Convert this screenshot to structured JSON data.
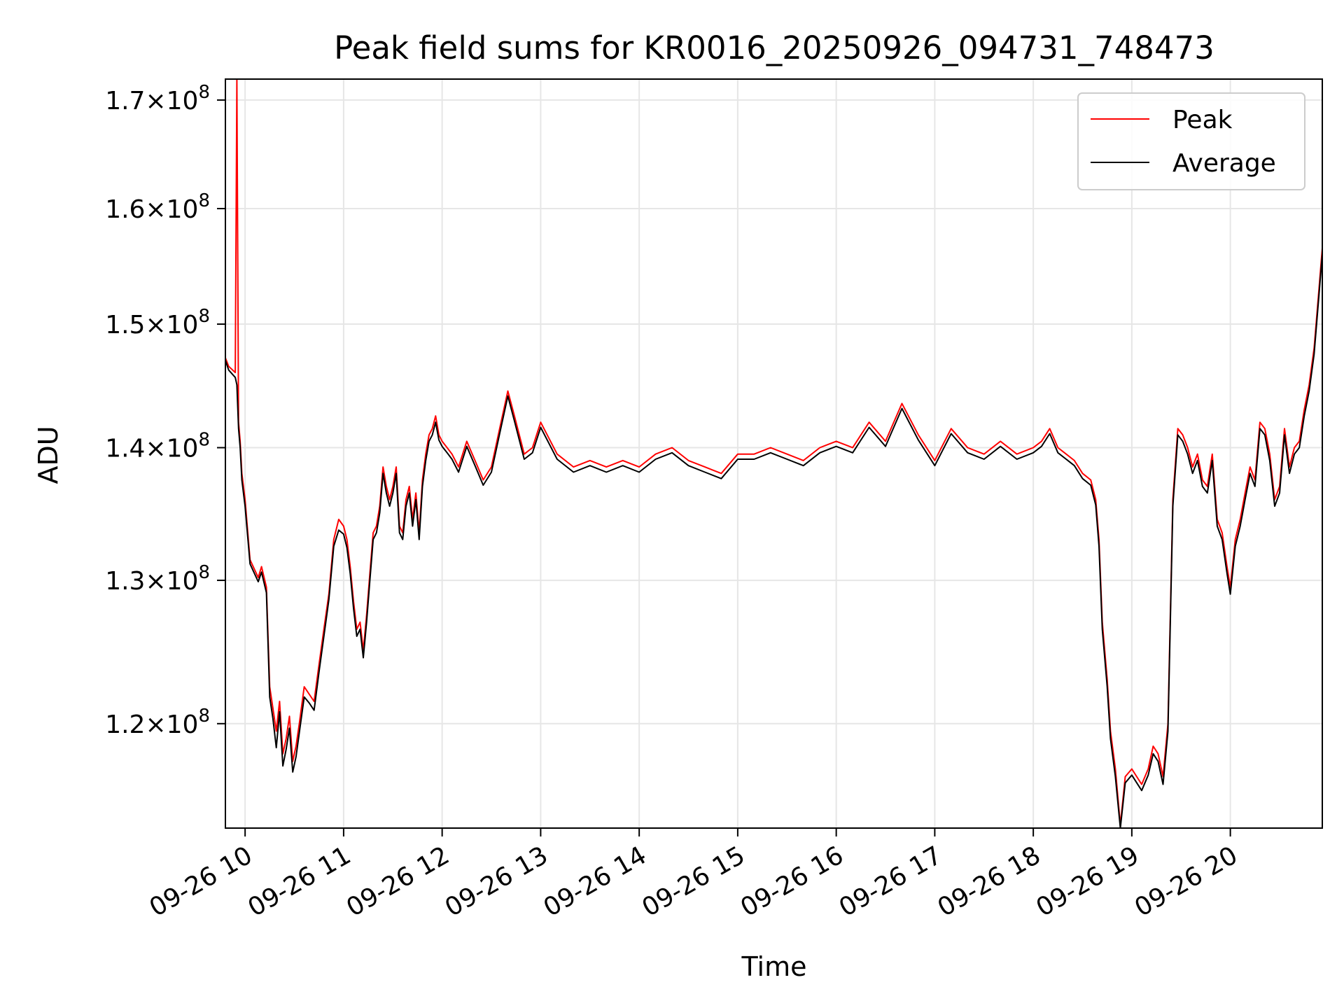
{
  "chart_data": {
    "type": "line",
    "title": "Peak field sums for KR0016_20250926_094731_748473",
    "xlabel": "Time",
    "ylabel": "ADU",
    "y_scale": "log",
    "grid": true,
    "legend": "upper right",
    "ylim": [
      113200000,
      172000000
    ],
    "xlim": [
      "2025-09-26 09:48",
      "2025-09-26 20:56"
    ],
    "x_ticks": [
      "2025-09-26 10:00",
      "2025-09-26 11:00",
      "2025-09-26 12:00",
      "2025-09-26 13:00",
      "2025-09-26 14:00",
      "2025-09-26 15:00",
      "2025-09-26 16:00",
      "2025-09-26 17:00",
      "2025-09-26 18:00",
      "2025-09-26 19:00",
      "2025-09-26 20:00"
    ],
    "x_tick_labels": [
      "09-26 10",
      "09-26 11",
      "09-26 12",
      "09-26 13",
      "09-26 14",
      "09-26 15",
      "09-26 16",
      "09-26 17",
      "09-26 18",
      "09-26 19",
      "09-26 20"
    ],
    "y_ticks": [
      {
        "value": 120000000,
        "mantissa": "1.2",
        "exp": "8"
      },
      {
        "value": 130000000,
        "mantissa": "1.3",
        "exp": "8"
      },
      {
        "value": 140000000,
        "mantissa": "1.4",
        "exp": "8"
      },
      {
        "value": 150000000,
        "mantissa": "1.5",
        "exp": "8"
      },
      {
        "value": 160000000,
        "mantissa": "1.6",
        "exp": "8"
      },
      {
        "value": 170000000,
        "mantissa": "1.7",
        "exp": "8"
      }
    ],
    "series": [
      {
        "name": "Peak",
        "color": "#ff0000",
        "x": [
          "2025-09-26 09:48",
          "2025-09-26 09:50",
          "2025-09-26 09:54",
          "2025-09-26 09:55",
          "2025-09-26 09:56",
          "2025-09-26 09:57",
          "2025-09-26 09:58",
          "2025-09-26 10:00",
          "2025-09-26 10:03",
          "2025-09-26 10:08",
          "2025-09-26 10:10",
          "2025-09-26 10:13",
          "2025-09-26 10:15",
          "2025-09-26 10:17",
          "2025-09-26 10:19",
          "2025-09-26 10:21",
          "2025-09-26 10:23",
          "2025-09-26 10:25",
          "2025-09-26 10:27",
          "2025-09-26 10:29",
          "2025-09-26 10:31",
          "2025-09-26 10:33",
          "2025-09-26 10:36",
          "2025-09-26 10:39",
          "2025-09-26 10:42",
          "2025-09-26 10:45",
          "2025-09-26 10:48",
          "2025-09-26 10:51",
          "2025-09-26 10:54",
          "2025-09-26 10:57",
          "2025-09-26 11:00",
          "2025-09-26 11:02",
          "2025-09-26 11:04",
          "2025-09-26 11:06",
          "2025-09-26 11:08",
          "2025-09-26 11:10",
          "2025-09-26 11:12",
          "2025-09-26 11:14",
          "2025-09-26 11:16",
          "2025-09-26 11:18",
          "2025-09-26 11:20",
          "2025-09-26 11:22",
          "2025-09-26 11:24",
          "2025-09-26 11:26",
          "2025-09-26 11:28",
          "2025-09-26 11:30",
          "2025-09-26 11:32",
          "2025-09-26 11:34",
          "2025-09-26 11:36",
          "2025-09-26 11:38",
          "2025-09-26 11:40",
          "2025-09-26 11:42",
          "2025-09-26 11:44",
          "2025-09-26 11:46",
          "2025-09-26 11:48",
          "2025-09-26 11:50",
          "2025-09-26 11:52",
          "2025-09-26 11:54",
          "2025-09-26 11:56",
          "2025-09-26 11:58",
          "2025-09-26 12:00",
          "2025-09-26 12:03",
          "2025-09-26 12:06",
          "2025-09-26 12:10",
          "2025-09-26 12:15",
          "2025-09-26 12:20",
          "2025-09-26 12:25",
          "2025-09-26 12:30",
          "2025-09-26 12:35",
          "2025-09-26 12:40",
          "2025-09-26 12:44",
          "2025-09-26 12:50",
          "2025-09-26 12:55",
          "2025-09-26 13:00",
          "2025-09-26 13:10",
          "2025-09-26 13:20",
          "2025-09-26 13:30",
          "2025-09-26 13:40",
          "2025-09-26 13:50",
          "2025-09-26 14:00",
          "2025-09-26 14:10",
          "2025-09-26 14:20",
          "2025-09-26 14:30",
          "2025-09-26 14:40",
          "2025-09-26 14:50",
          "2025-09-26 15:00",
          "2025-09-26 15:10",
          "2025-09-26 15:20",
          "2025-09-26 15:30",
          "2025-09-26 15:40",
          "2025-09-26 15:50",
          "2025-09-26 16:00",
          "2025-09-26 16:10",
          "2025-09-26 16:20",
          "2025-09-26 16:30",
          "2025-09-26 16:40",
          "2025-09-26 16:50",
          "2025-09-26 17:00",
          "2025-09-26 17:10",
          "2025-09-26 17:20",
          "2025-09-26 17:30",
          "2025-09-26 17:40",
          "2025-09-26 17:50",
          "2025-09-26 18:00",
          "2025-09-26 18:05",
          "2025-09-26 18:10",
          "2025-09-26 18:15",
          "2025-09-26 18:20",
          "2025-09-26 18:25",
          "2025-09-26 18:30",
          "2025-09-26 18:35",
          "2025-09-26 18:38",
          "2025-09-26 18:40",
          "2025-09-26 18:42",
          "2025-09-26 18:45",
          "2025-09-26 18:47",
          "2025-09-26 18:50",
          "2025-09-26 18:53",
          "2025-09-26 18:56",
          "2025-09-26 19:00",
          "2025-09-26 19:03",
          "2025-09-26 19:06",
          "2025-09-26 19:10",
          "2025-09-26 19:13",
          "2025-09-26 19:16",
          "2025-09-26 19:19",
          "2025-09-26 19:22",
          "2025-09-26 19:25",
          "2025-09-26 19:28",
          "2025-09-26 19:31",
          "2025-09-26 19:34",
          "2025-09-26 19:37",
          "2025-09-26 19:40",
          "2025-09-26 19:43",
          "2025-09-26 19:46",
          "2025-09-26 19:49",
          "2025-09-26 19:52",
          "2025-09-26 19:55",
          "2025-09-26 19:58",
          "2025-09-26 20:00",
          "2025-09-26 20:03",
          "2025-09-26 20:06",
          "2025-09-26 20:09",
          "2025-09-26 20:12",
          "2025-09-26 20:15",
          "2025-09-26 20:18",
          "2025-09-26 20:21",
          "2025-09-26 20:24",
          "2025-09-26 20:27",
          "2025-09-26 20:30",
          "2025-09-26 20:33",
          "2025-09-26 20:36",
          "2025-09-26 20:39",
          "2025-09-26 20:42",
          "2025-09-26 20:45",
          "2025-09-26 20:48",
          "2025-09-26 20:51",
          "2025-09-26 20:54",
          "2025-09-26 20:56"
        ],
        "values": [
          147200000,
          146500000,
          146000000,
          172000000,
          142000000,
          140500000,
          138000000,
          136000000,
          131500000,
          130200000,
          131000000,
          129500000,
          122500000,
          121000000,
          119500000,
          121500000,
          118000000,
          119000000,
          120500000,
          117500000,
          118500000,
          120000000,
          122500000,
          122000000,
          121500000,
          124000000,
          126500000,
          129000000,
          133000000,
          134500000,
          134000000,
          133000000,
          131000000,
          128500000,
          126500000,
          127000000,
          125000000,
          127500000,
          130500000,
          133500000,
          134000000,
          135500000,
          138500000,
          137000000,
          136000000,
          137000000,
          138500000,
          134000000,
          133500000,
          136000000,
          137000000,
          134500000,
          136500000,
          133500000,
          137500000,
          139500000,
          141000000,
          141500000,
          142500000,
          141000000,
          140500000,
          140000000,
          139500000,
          138500000,
          140500000,
          139000000,
          137500000,
          138500000,
          141500000,
          144500000,
          142500000,
          139500000,
          140000000,
          142000000,
          139500000,
          138500000,
          139000000,
          138500000,
          139000000,
          138500000,
          139500000,
          140000000,
          139000000,
          138500000,
          138000000,
          139500000,
          139500000,
          140000000,
          139500000,
          139000000,
          140000000,
          140500000,
          140000000,
          142000000,
          140500000,
          143500000,
          141000000,
          139000000,
          141500000,
          140000000,
          139500000,
          140500000,
          139500000,
          140000000,
          140500000,
          141500000,
          140000000,
          139500000,
          139000000,
          138000000,
          137500000,
          136000000,
          133000000,
          127000000,
          123000000,
          119500000,
          117000000,
          113400000,
          116500000,
          117000000,
          116500000,
          116000000,
          117000000,
          118500000,
          118000000,
          116500000,
          120000000,
          136000000,
          141500000,
          141000000,
          140000000,
          138500000,
          139500000,
          137500000,
          137000000,
          139500000,
          134500000,
          133500000,
          131000000,
          129500000,
          133000000,
          134500000,
          136500000,
          138500000,
          137500000,
          142000000,
          141500000,
          139500000,
          136000000,
          137000000,
          141500000,
          138500000,
          140000000,
          140500000,
          143000000,
          145000000,
          148000000,
          153000000,
          156500000
        ]
      },
      {
        "name": "Average",
        "color": "#000000",
        "x": [
          "2025-09-26 09:48",
          "2025-09-26 09:50",
          "2025-09-26 09:54",
          "2025-09-26 09:55",
          "2025-09-26 09:56",
          "2025-09-26 09:57",
          "2025-09-26 09:58",
          "2025-09-26 10:00",
          "2025-09-26 10:03",
          "2025-09-26 10:08",
          "2025-09-26 10:10",
          "2025-09-26 10:13",
          "2025-09-26 10:15",
          "2025-09-26 10:17",
          "2025-09-26 10:19",
          "2025-09-26 10:21",
          "2025-09-26 10:23",
          "2025-09-26 10:25",
          "2025-09-26 10:27",
          "2025-09-26 10:29",
          "2025-09-26 10:31",
          "2025-09-26 10:33",
          "2025-09-26 10:36",
          "2025-09-26 10:39",
          "2025-09-26 10:42",
          "2025-09-26 10:45",
          "2025-09-26 10:48",
          "2025-09-26 10:51",
          "2025-09-26 10:54",
          "2025-09-26 10:57",
          "2025-09-26 11:00",
          "2025-09-26 11:02",
          "2025-09-26 11:04",
          "2025-09-26 11:06",
          "2025-09-26 11:08",
          "2025-09-26 11:10",
          "2025-09-26 11:12",
          "2025-09-26 11:14",
          "2025-09-26 11:16",
          "2025-09-26 11:18",
          "2025-09-26 11:20",
          "2025-09-26 11:22",
          "2025-09-26 11:24",
          "2025-09-26 11:26",
          "2025-09-26 11:28",
          "2025-09-26 11:30",
          "2025-09-26 11:32",
          "2025-09-26 11:34",
          "2025-09-26 11:36",
          "2025-09-26 11:38",
          "2025-09-26 11:40",
          "2025-09-26 11:42",
          "2025-09-26 11:44",
          "2025-09-26 11:46",
          "2025-09-26 11:48",
          "2025-09-26 11:50",
          "2025-09-26 11:52",
          "2025-09-26 11:54",
          "2025-09-26 11:56",
          "2025-09-26 11:58",
          "2025-09-26 12:00",
          "2025-09-26 12:03",
          "2025-09-26 12:06",
          "2025-09-26 12:10",
          "2025-09-26 12:15",
          "2025-09-26 12:20",
          "2025-09-26 12:25",
          "2025-09-26 12:30",
          "2025-09-26 12:35",
          "2025-09-26 12:40",
          "2025-09-26 12:44",
          "2025-09-26 12:50",
          "2025-09-26 12:55",
          "2025-09-26 13:00",
          "2025-09-26 13:10",
          "2025-09-26 13:20",
          "2025-09-26 13:30",
          "2025-09-26 13:40",
          "2025-09-26 13:50",
          "2025-09-26 14:00",
          "2025-09-26 14:10",
          "2025-09-26 14:20",
          "2025-09-26 14:30",
          "2025-09-26 14:40",
          "2025-09-26 14:50",
          "2025-09-26 15:00",
          "2025-09-26 15:10",
          "2025-09-26 15:20",
          "2025-09-26 15:30",
          "2025-09-26 15:40",
          "2025-09-26 15:50",
          "2025-09-26 16:00",
          "2025-09-26 16:10",
          "2025-09-26 16:20",
          "2025-09-26 16:30",
          "2025-09-26 16:40",
          "2025-09-26 16:50",
          "2025-09-26 17:00",
          "2025-09-26 17:10",
          "2025-09-26 17:20",
          "2025-09-26 17:30",
          "2025-09-26 17:40",
          "2025-09-26 17:50",
          "2025-09-26 18:00",
          "2025-09-26 18:05",
          "2025-09-26 18:10",
          "2025-09-26 18:15",
          "2025-09-26 18:20",
          "2025-09-26 18:25",
          "2025-09-26 18:30",
          "2025-09-26 18:35",
          "2025-09-26 18:38",
          "2025-09-26 18:40",
          "2025-09-26 18:42",
          "2025-09-26 18:45",
          "2025-09-26 18:47",
          "2025-09-26 18:50",
          "2025-09-26 18:53",
          "2025-09-26 18:56",
          "2025-09-26 19:00",
          "2025-09-26 19:03",
          "2025-09-26 19:06",
          "2025-09-26 19:10",
          "2025-09-26 19:13",
          "2025-09-26 19:16",
          "2025-09-26 19:19",
          "2025-09-26 19:22",
          "2025-09-26 19:25",
          "2025-09-26 19:28",
          "2025-09-26 19:31",
          "2025-09-26 19:34",
          "2025-09-26 19:37",
          "2025-09-26 19:40",
          "2025-09-26 19:43",
          "2025-09-26 19:46",
          "2025-09-26 19:49",
          "2025-09-26 19:52",
          "2025-09-26 19:55",
          "2025-09-26 19:58",
          "2025-09-26 20:00",
          "2025-09-26 20:03",
          "2025-09-26 20:06",
          "2025-09-26 20:09",
          "2025-09-26 20:12",
          "2025-09-26 20:15",
          "2025-09-26 20:18",
          "2025-09-26 20:21",
          "2025-09-26 20:24",
          "2025-09-26 20:27",
          "2025-09-26 20:30",
          "2025-09-26 20:33",
          "2025-09-26 20:36",
          "2025-09-26 20:39",
          "2025-09-26 20:42",
          "2025-09-26 20:45",
          "2025-09-26 20:48",
          "2025-09-26 20:51",
          "2025-09-26 20:54",
          "2025-09-26 20:56"
        ],
        "values": [
          147000000,
          146200000,
          145600000,
          145000000,
          141500000,
          140000000,
          137500000,
          135500000,
          131200000,
          129900000,
          130600000,
          129100000,
          121800000,
          120300000,
          118400000,
          120800000,
          117200000,
          118300000,
          119700000,
          116800000,
          117800000,
          119400000,
          121800000,
          121400000,
          120900000,
          123500000,
          126000000,
          128600000,
          132500000,
          133700000,
          133400000,
          132400000,
          130500000,
          128000000,
          126000000,
          126500000,
          124500000,
          127000000,
          130000000,
          133000000,
          133500000,
          135000000,
          138000000,
          136500000,
          135500000,
          136500000,
          138000000,
          133500000,
          133000000,
          135500000,
          136500000,
          134000000,
          136000000,
          133000000,
          137000000,
          139000000,
          140500000,
          141000000,
          142000000,
          140600000,
          140100000,
          139600000,
          139100000,
          138100000,
          140100000,
          138600000,
          137100000,
          138100000,
          141100000,
          144100000,
          142100000,
          139100000,
          139600000,
          141600000,
          139100000,
          138100000,
          138600000,
          138100000,
          138600000,
          138100000,
          139100000,
          139600000,
          138600000,
          138100000,
          137600000,
          139100000,
          139100000,
          139600000,
          139100000,
          138600000,
          139600000,
          140100000,
          139600000,
          141600000,
          140100000,
          143100000,
          140600000,
          138600000,
          141100000,
          139600000,
          139100000,
          140100000,
          139100000,
          139600000,
          140100000,
          141100000,
          139600000,
          139100000,
          138600000,
          137600000,
          137100000,
          135600000,
          132500000,
          126500000,
          122500000,
          119000000,
          116500000,
          113200000,
          116100000,
          116600000,
          116100000,
          115600000,
          116600000,
          118000000,
          117500000,
          116000000,
          119500000,
          135500000,
          141000000,
          140500000,
          139500000,
          138000000,
          139000000,
          137000000,
          136500000,
          139000000,
          134000000,
          133000000,
          130500000,
          129000000,
          132500000,
          134000000,
          136000000,
          138000000,
          137000000,
          141500000,
          141000000,
          139000000,
          135500000,
          136500000,
          141000000,
          138000000,
          139500000,
          140000000,
          142500000,
          144500000,
          147500000,
          152500000,
          156000000
        ]
      }
    ]
  }
}
